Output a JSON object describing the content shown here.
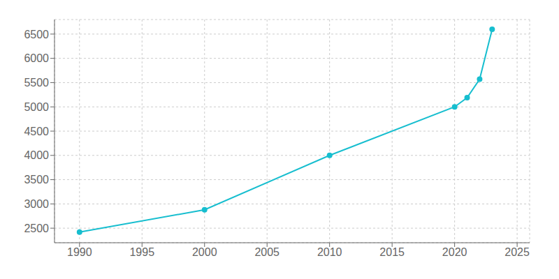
{
  "chart_data": {
    "type": "line",
    "x": [
      1990,
      2000,
      2010,
      2020,
      2021,
      2022,
      2023
    ],
    "values": [
      2418,
      2880,
      4000,
      5000,
      5190,
      5570,
      6600
    ],
    "color": "#17becf",
    "marker": "circle",
    "xlim": [
      1988,
      2026
    ],
    "ylim": [
      2200,
      6800
    ],
    "xticks": [
      1990,
      1995,
      2000,
      2005,
      2010,
      2015,
      2020,
      2025
    ],
    "yticks": [
      2500,
      3000,
      3500,
      4000,
      4500,
      5000,
      5500,
      6000,
      6500
    ],
    "grid": true
  }
}
